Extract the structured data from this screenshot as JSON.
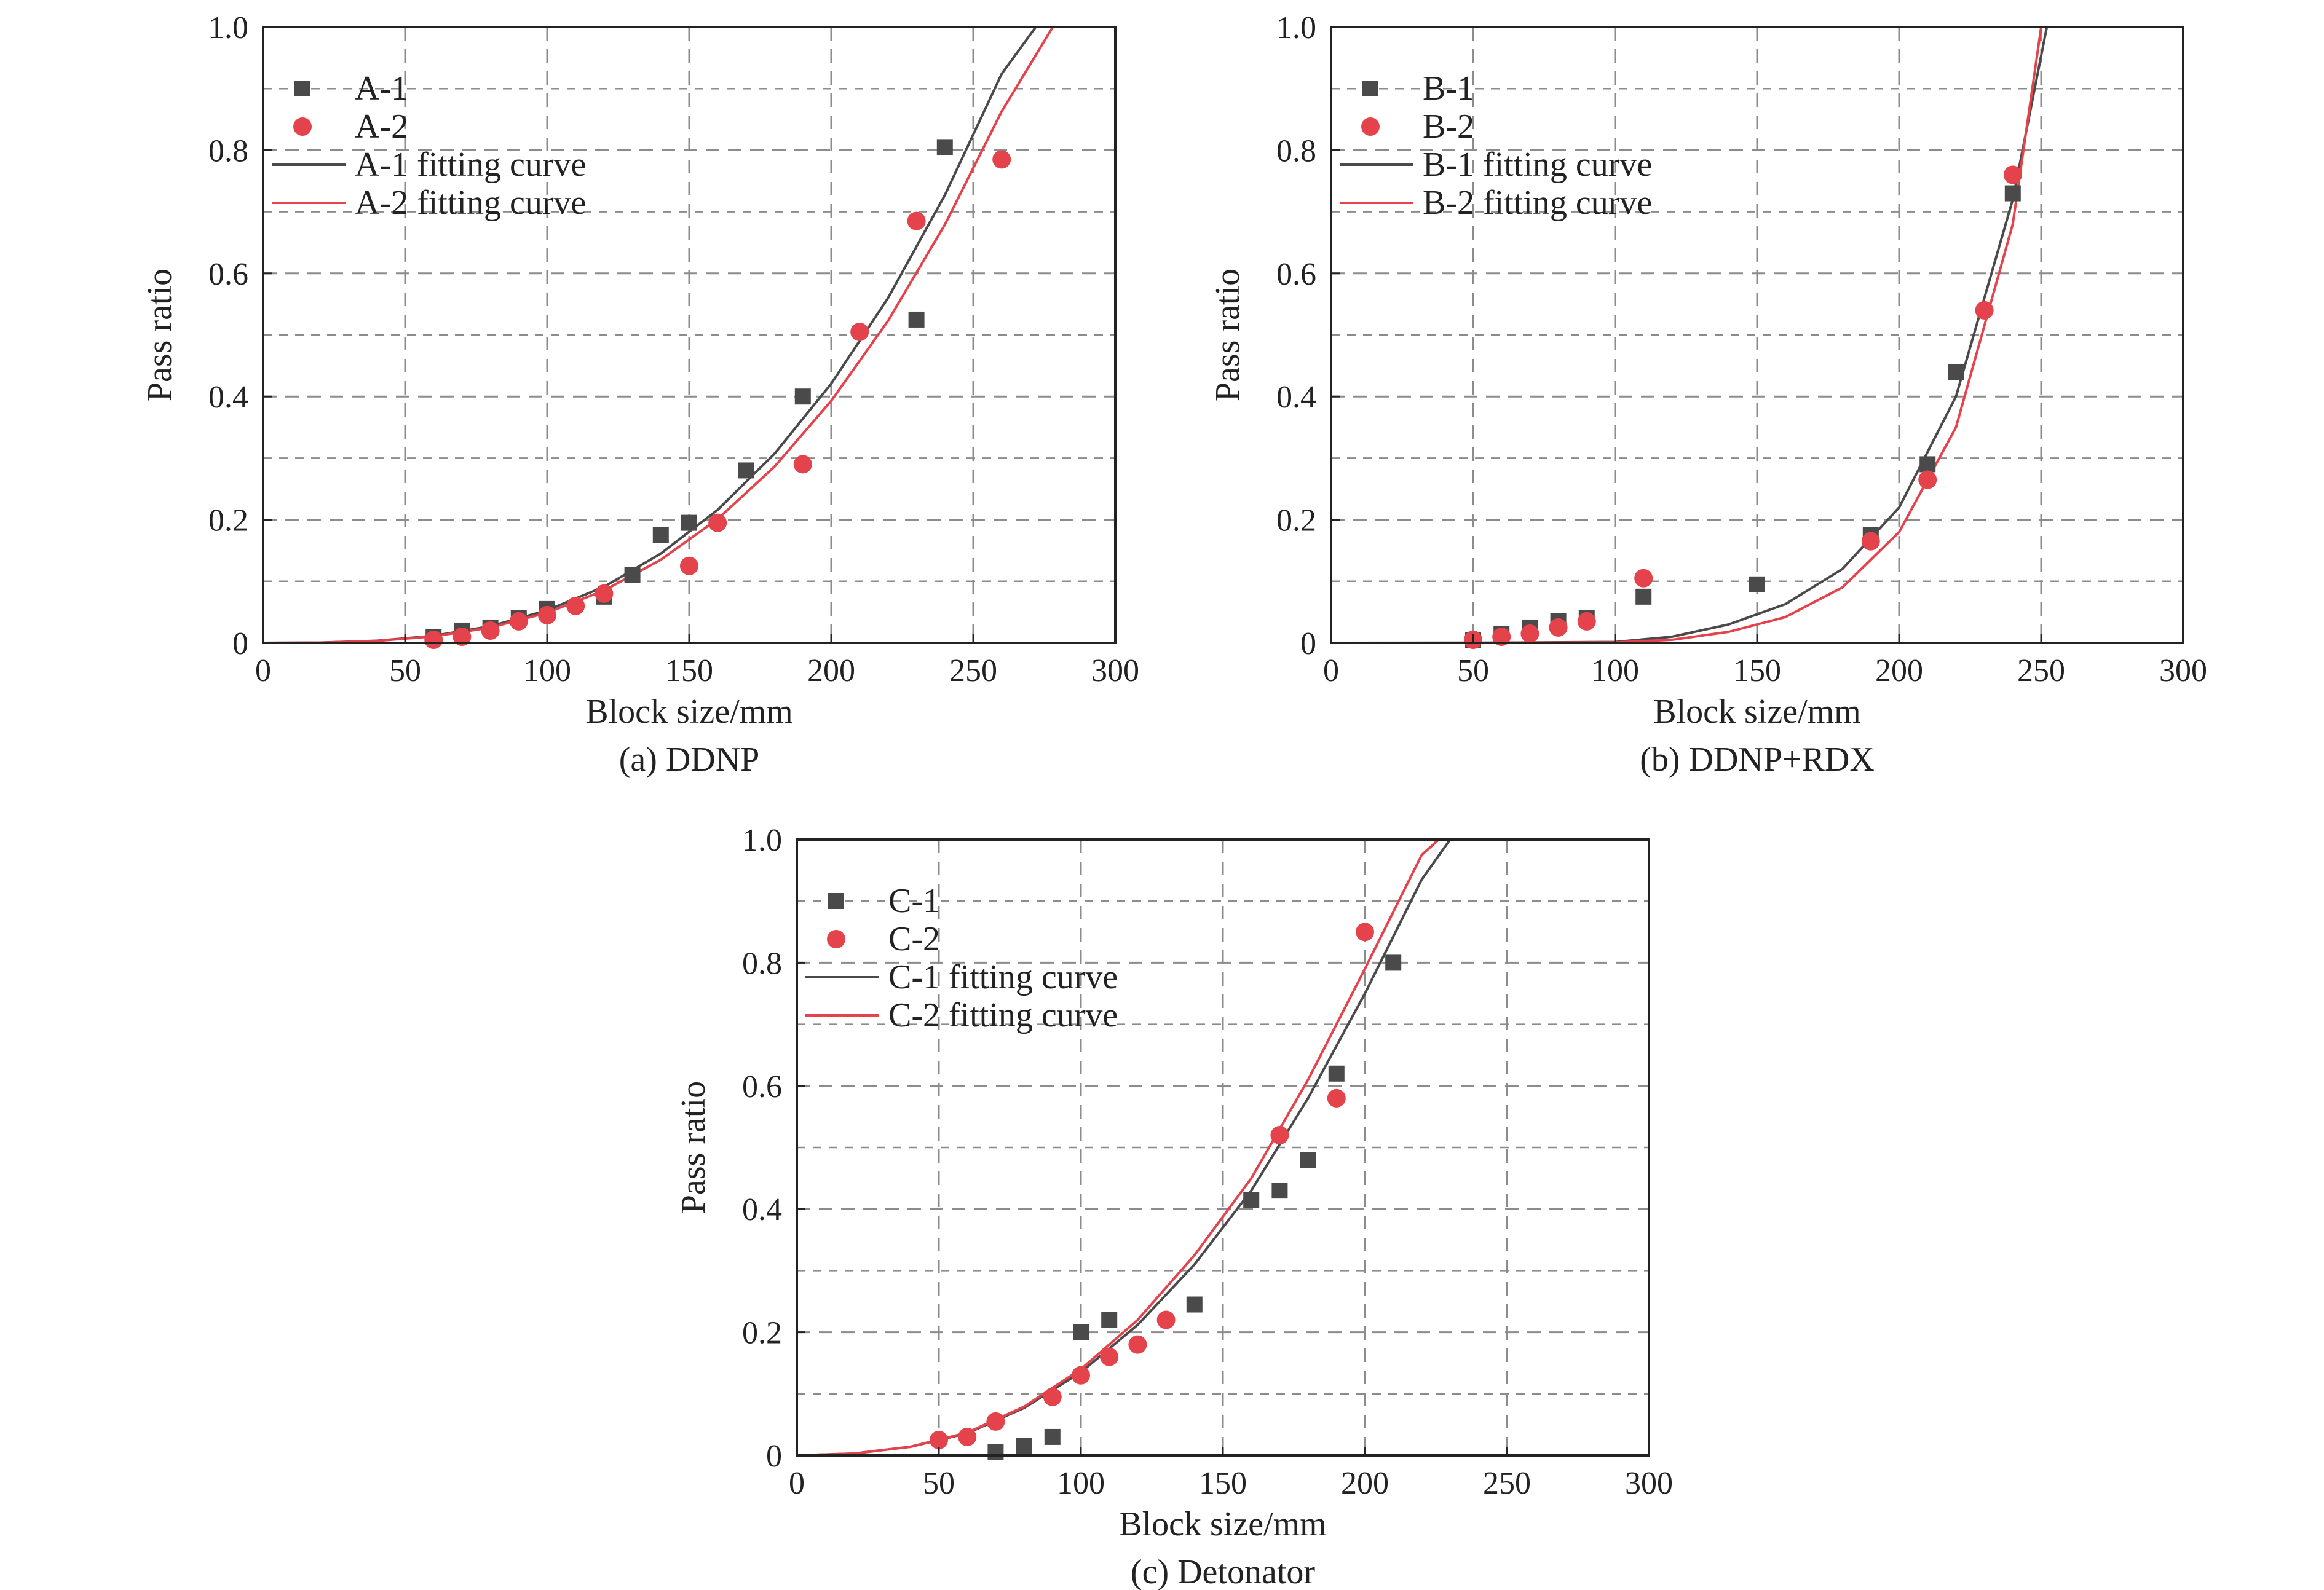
{
  "colors": {
    "series1": "#4a4a4a",
    "series2": "#e5434c",
    "grid": "#8c8c8c",
    "axis": "#222222"
  },
  "chart_data": [
    {
      "type": "scatter",
      "caption": "(a) DDNP",
      "xlabel": "Block size/mm",
      "ylabel": "Pass ratio",
      "xlim": [
        0,
        300
      ],
      "ylim": [
        0,
        1.0
      ],
      "xticks": [
        "0",
        "50",
        "100",
        "150",
        "200",
        "250",
        "300"
      ],
      "yticks": [
        "0",
        "0.2",
        "0.4",
        "0.6",
        "0.8",
        "1.0"
      ],
      "grid": true,
      "legend_position": "top-left",
      "series": [
        {
          "name": "A-1",
          "marker": "square",
          "x": [
            60,
            70,
            80,
            90,
            100,
            120,
            130,
            140,
            150,
            170,
            190,
            230,
            240
          ],
          "y": [
            0.01,
            0.02,
            0.025,
            0.04,
            0.055,
            0.075,
            0.11,
            0.175,
            0.195,
            0.28,
            0.4,
            0.525,
            0.805
          ]
        },
        {
          "name": "A-2",
          "marker": "circle",
          "x": [
            60,
            70,
            80,
            90,
            100,
            110,
            120,
            150,
            160,
            190,
            210,
            230,
            260
          ],
          "y": [
            0.005,
            0.01,
            0.02,
            0.035,
            0.045,
            0.06,
            0.08,
            0.125,
            0.195,
            0.29,
            0.505,
            0.685,
            0.785
          ]
        },
        {
          "name": "A-1 fitting curve",
          "type": "line",
          "x": [
            0,
            20,
            40,
            60,
            80,
            100,
            120,
            140,
            160,
            180,
            200,
            220,
            240,
            260,
            272
          ],
          "y": [
            0,
            0.0005,
            0.0035,
            0.0115,
            0.027,
            0.053,
            0.091,
            0.145,
            0.216,
            0.307,
            0.421,
            0.56,
            0.727,
            0.924,
            1.0
          ]
        },
        {
          "name": "A-2 fitting curve",
          "type": "line",
          "x": [
            0,
            20,
            40,
            60,
            80,
            100,
            120,
            140,
            160,
            180,
            200,
            220,
            240,
            260,
            278
          ],
          "y": [
            0,
            0.0004,
            0.0032,
            0.0106,
            0.025,
            0.049,
            0.085,
            0.135,
            0.201,
            0.286,
            0.393,
            0.523,
            0.679,
            0.863,
            1.0
          ]
        }
      ]
    },
    {
      "type": "scatter",
      "caption": "(b) DDNP+RDX",
      "xlabel": "Block size/mm",
      "ylabel": "Pass ratio",
      "xlim": [
        0,
        300
      ],
      "ylim": [
        0,
        1.0
      ],
      "xticks": [
        "0",
        "50",
        "100",
        "150",
        "200",
        "250",
        "300"
      ],
      "yticks": [
        "0",
        "0.2",
        "0.4",
        "0.6",
        "0.8",
        "1.0"
      ],
      "grid": true,
      "legend_position": "top-left",
      "series": [
        {
          "name": "B-1",
          "marker": "square",
          "x": [
            50,
            60,
            70,
            80,
            90,
            110,
            150,
            190,
            210,
            220,
            240
          ],
          "y": [
            0.005,
            0.015,
            0.025,
            0.035,
            0.04,
            0.075,
            0.095,
            0.175,
            0.29,
            0.44,
            0.73
          ]
        },
        {
          "name": "B-2",
          "marker": "circle",
          "x": [
            50,
            60,
            70,
            80,
            90,
            110,
            190,
            210,
            230,
            240
          ],
          "y": [
            0.005,
            0.01,
            0.015,
            0.025,
            0.035,
            0.105,
            0.165,
            0.265,
            0.54,
            0.76
          ]
        },
        {
          "name": "B-1 fitting curve",
          "type": "line",
          "x": [
            0,
            50,
            100,
            120,
            140,
            160,
            180,
            200,
            220,
            240,
            252
          ],
          "y": [
            0,
            0.0002,
            0.0015,
            0.01,
            0.03,
            0.063,
            0.12,
            0.22,
            0.4,
            0.72,
            1.0
          ]
        },
        {
          "name": "B-2 fitting curve",
          "type": "line",
          "x": [
            0,
            50,
            100,
            120,
            140,
            160,
            180,
            200,
            220,
            240,
            250
          ],
          "y": [
            0,
            0.0001,
            0.0008,
            0.005,
            0.018,
            0.042,
            0.09,
            0.18,
            0.35,
            0.68,
            1.0
          ]
        }
      ]
    },
    {
      "type": "scatter",
      "caption": "(c) Detonator",
      "xlabel": "Block size/mm",
      "ylabel": "Pass ratio",
      "xlim": [
        0,
        300
      ],
      "ylim": [
        0,
        1.0
      ],
      "xticks": [
        "0",
        "50",
        "100",
        "150",
        "200",
        "250",
        "300"
      ],
      "yticks": [
        "0",
        "0.2",
        "0.4",
        "0.6",
        "0.8",
        "1.0"
      ],
      "grid": true,
      "legend_position": "top-left",
      "series": [
        {
          "name": "C-1",
          "marker": "square",
          "x": [
            70,
            80,
            90,
            100,
            110,
            140,
            160,
            170,
            180,
            190,
            210
          ],
          "y": [
            0.005,
            0.015,
            0.03,
            0.2,
            0.22,
            0.245,
            0.415,
            0.43,
            0.48,
            0.62,
            0.8
          ]
        },
        {
          "name": "C-2",
          "marker": "circle",
          "x": [
            50,
            60,
            70,
            90,
            100,
            110,
            120,
            130,
            170,
            190,
            200
          ],
          "y": [
            0.025,
            0.03,
            0.055,
            0.095,
            0.13,
            0.16,
            0.18,
            0.22,
            0.52,
            0.58,
            0.85
          ]
        },
        {
          "name": "C-1 fitting curve",
          "type": "line",
          "x": [
            0,
            20,
            40,
            60,
            80,
            100,
            120,
            140,
            160,
            180,
            200,
            220,
            230
          ],
          "y": [
            0,
            0.003,
            0.014,
            0.036,
            0.077,
            0.135,
            0.212,
            0.31,
            0.43,
            0.58,
            0.75,
            0.935,
            1.0
          ]
        },
        {
          "name": "C-2 fitting curve",
          "type": "line",
          "x": [
            0,
            20,
            40,
            60,
            80,
            100,
            120,
            140,
            160,
            180,
            200,
            220,
            226
          ],
          "y": [
            0,
            0.003,
            0.014,
            0.037,
            0.079,
            0.14,
            0.22,
            0.325,
            0.45,
            0.61,
            0.79,
            0.975,
            1.0
          ]
        }
      ]
    }
  ]
}
